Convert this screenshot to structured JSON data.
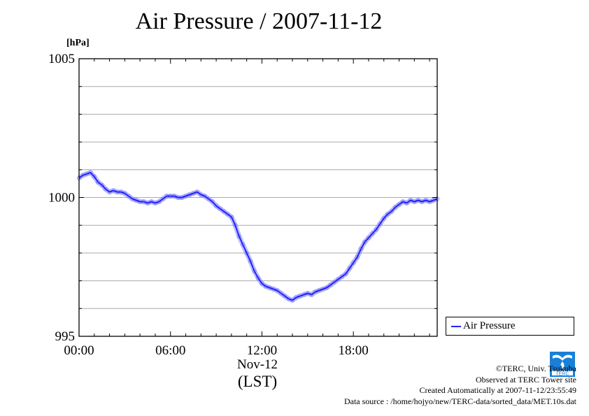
{
  "title": "Air Pressure / 2007-11-12",
  "unit_label": "[hPa]",
  "x_sub_label": "Nov-12",
  "x_zone_label": "(LST)",
  "legend": {
    "label": "Air Pressure"
  },
  "credits": {
    "copyright": "©TERC, Univ. Tsukuba",
    "site": "Observed at TERC Tower site",
    "created": "Created Automatically at 2007-11-12/23:55:49",
    "source": "Data source : /home/hojyo/new/TERC-data/sorted_data/MET.10s.dat"
  },
  "logo_text": "TERC",
  "colors": {
    "series": "#2222ff",
    "marker": "#8a8aff",
    "grid": "#aaaaaa",
    "logo": "#1a7fd6"
  },
  "chart_data": {
    "type": "line",
    "title": "Air Pressure / 2007-11-12",
    "xlabel": "(LST)",
    "ylabel": "[hPa]",
    "xlim": [
      0,
      23.5
    ],
    "ylim": [
      995,
      1005
    ],
    "x_ticks": [
      {
        "value": 0,
        "label": "00:00"
      },
      {
        "value": 6,
        "label": "06:00"
      },
      {
        "value": 12,
        "label": "12:00"
      },
      {
        "value": 18,
        "label": "18:00"
      }
    ],
    "y_ticks": [
      {
        "value": 995,
        "label": "995"
      },
      {
        "value": 1000,
        "label": "1000"
      },
      {
        "value": 1005,
        "label": "1005"
      }
    ],
    "grid": true,
    "legend_position": "outside-right-bottom",
    "series": [
      {
        "name": "Air Pressure",
        "x": [
          0,
          0.25,
          0.5,
          0.75,
          1.0,
          1.25,
          1.5,
          1.75,
          2.0,
          2.25,
          2.5,
          2.75,
          3.0,
          3.25,
          3.5,
          3.75,
          4.0,
          4.25,
          4.5,
          4.75,
          5.0,
          5.25,
          5.5,
          5.75,
          6.0,
          6.25,
          6.5,
          6.75,
          7.0,
          7.25,
          7.5,
          7.75,
          8.0,
          8.25,
          8.5,
          8.75,
          9.0,
          9.25,
          9.5,
          9.75,
          10.0,
          10.25,
          10.5,
          10.75,
          11.0,
          11.25,
          11.5,
          11.75,
          12.0,
          12.25,
          12.5,
          12.75,
          13.0,
          13.25,
          13.5,
          13.75,
          14.0,
          14.25,
          14.5,
          14.75,
          15.0,
          15.25,
          15.5,
          15.75,
          16.0,
          16.25,
          16.5,
          16.75,
          17.0,
          17.25,
          17.5,
          17.75,
          18.0,
          18.25,
          18.5,
          18.75,
          19.0,
          19.25,
          19.5,
          19.75,
          20.0,
          20.25,
          20.5,
          20.75,
          21.0,
          21.25,
          21.5,
          21.75,
          22.0,
          22.25,
          22.5,
          22.75,
          23.0,
          23.25,
          23.5
        ],
        "y": [
          1000.7,
          1000.8,
          1000.85,
          1000.9,
          1000.75,
          1000.55,
          1000.45,
          1000.3,
          1000.2,
          1000.25,
          1000.2,
          1000.2,
          1000.15,
          1000.05,
          999.95,
          999.9,
          999.85,
          999.85,
          999.8,
          999.85,
          999.8,
          999.85,
          999.95,
          1000.05,
          1000.05,
          1000.05,
          1000.0,
          1000.0,
          1000.05,
          1000.1,
          1000.15,
          1000.2,
          1000.1,
          1000.05,
          999.95,
          999.85,
          999.7,
          999.6,
          999.5,
          999.4,
          999.3,
          999.0,
          998.6,
          998.3,
          998.0,
          997.7,
          997.35,
          997.1,
          996.9,
          996.8,
          996.75,
          996.7,
          996.65,
          996.55,
          996.45,
          996.35,
          996.3,
          996.4,
          996.45,
          996.5,
          996.55,
          996.5,
          996.6,
          996.65,
          996.7,
          996.75,
          996.85,
          996.95,
          997.05,
          997.15,
          997.25,
          997.45,
          997.65,
          997.85,
          998.15,
          998.4,
          998.55,
          998.7,
          998.85,
          999.05,
          999.25,
          999.4,
          999.5,
          999.65,
          999.75,
          999.85,
          999.8,
          999.9,
          999.85,
          999.9,
          999.85,
          999.9,
          999.85,
          999.9,
          999.95
        ]
      }
    ]
  }
}
